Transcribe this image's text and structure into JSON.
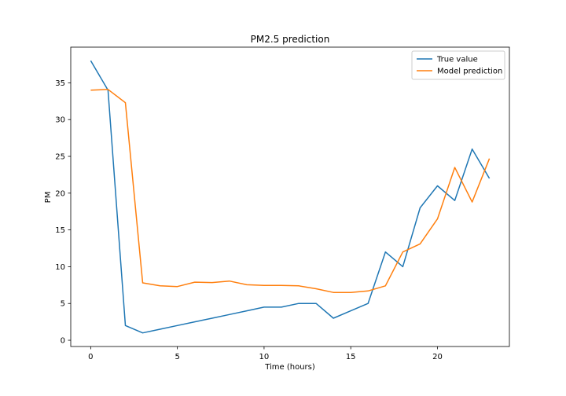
{
  "chart_data": {
    "type": "line",
    "title": "PM2.5 prediction",
    "xlabel": "Time (hours)",
    "ylabel": "PM",
    "xlim": [
      -1.15,
      24.15
    ],
    "ylim": [
      -0.85,
      39.85
    ],
    "xticks": [
      0,
      5,
      10,
      15,
      20
    ],
    "yticks": [
      0,
      5,
      10,
      15,
      20,
      25,
      30,
      35
    ],
    "grid": false,
    "legend_position": "top-right",
    "x": [
      0,
      1,
      2,
      3,
      4,
      5,
      6,
      7,
      8,
      9,
      10,
      11,
      12,
      13,
      14,
      15,
      16,
      17,
      18,
      19,
      20,
      21,
      22,
      23
    ],
    "series": [
      {
        "name": "True value",
        "color": "#1f77b4",
        "values": [
          38,
          34,
          2,
          1,
          1.5,
          2,
          2.5,
          3,
          3.5,
          4,
          4.5,
          4.5,
          5,
          5,
          3,
          4,
          5,
          12,
          10,
          18,
          21,
          19,
          26,
          22
        ]
      },
      {
        "name": "Model prediction",
        "color": "#ff7f0e",
        "values": [
          34,
          34.1,
          32.3,
          7.8,
          7.4,
          7.3,
          7.9,
          7.85,
          8.05,
          7.55,
          7.45,
          7.45,
          7.4,
          7,
          6.5,
          6.5,
          6.7,
          7.4,
          12,
          13.1,
          16.5,
          23.5,
          18.8,
          24.7
        ]
      }
    ]
  }
}
